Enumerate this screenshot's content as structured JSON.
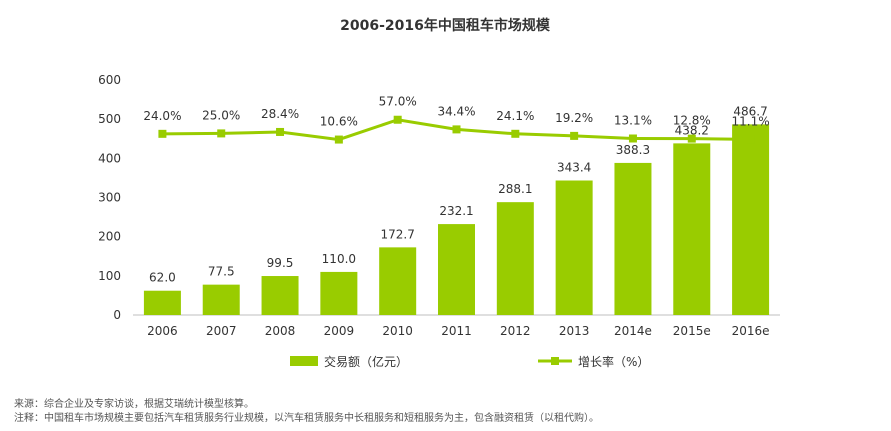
{
  "chart_data": {
    "type": "bar",
    "title": "2006-2016年中国租车市场规模",
    "categories": [
      "2006",
      "2007",
      "2008",
      "2009",
      "2010",
      "2011",
      "2012",
      "2013",
      "2014e",
      "2015e",
      "2016e"
    ],
    "series": [
      {
        "name": "交易额（亿元）",
        "type": "bar",
        "axis": "left",
        "values": [
          62.0,
          77.5,
          99.5,
          110.0,
          172.7,
          232.1,
          288.1,
          343.4,
          388.3,
          438.2,
          486.7
        ],
        "labels": [
          "62.0",
          "77.5",
          "99.5",
          "110.0",
          "172.7",
          "232.1",
          "288.1",
          "343.4",
          "388.3",
          "438.2",
          "486.7"
        ],
        "color": "#99cc00"
      },
      {
        "name": "增长率（%）",
        "type": "line",
        "axis": "right-hidden",
        "values": [
          24.0,
          25.0,
          28.4,
          10.6,
          57.0,
          34.4,
          24.1,
          19.2,
          13.1,
          12.8,
          11.1
        ],
        "labels": [
          "24.0%",
          "25.0%",
          "28.4%",
          "10.6%",
          "57.0%",
          "34.4%",
          "24.1%",
          "19.2%",
          "13.1%",
          "12.8%",
          "11.1%"
        ],
        "color": "#99cc00"
      }
    ],
    "ylim": [
      0,
      600
    ],
    "yticks": [
      "0",
      "100",
      "200",
      "300",
      "400",
      "500",
      "600"
    ],
    "xlabel": "",
    "ylabel": "",
    "legend_position": "bottom",
    "grid": false
  },
  "notes": {
    "source": "来源：综合企业及专家访谈，根据艾瑞统计模型核算。",
    "remark": "注释：中国租车市场规模主要包括汽车租赁服务行业规模，以汽车租赁服务中长租服务和短租服务为主，包含融资租赁（以租代购）。"
  }
}
